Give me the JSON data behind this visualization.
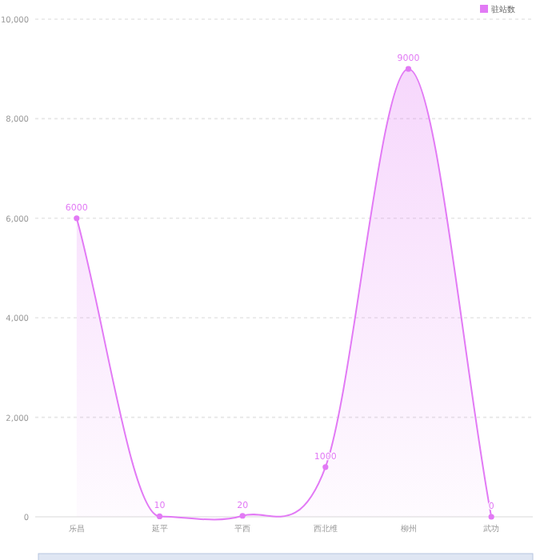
{
  "chart_data": {
    "type": "area",
    "categories": [
      "乐昌",
      "延平",
      "平西",
      "西北维",
      "柳州",
      "武功"
    ],
    "series": [
      {
        "name": "驻站数",
        "color": "#e27af5",
        "values": [
          6000,
          10,
          20,
          1000,
          9000,
          0
        ]
      }
    ],
    "ylim": [
      0,
      10000
    ],
    "yticks": [
      {
        "value": 0,
        "label": "0"
      },
      {
        "value": 2000,
        "label": "2,000"
      },
      {
        "value": 4000,
        "label": "4,000"
      },
      {
        "value": 6000,
        "label": "6,000"
      },
      {
        "value": 8000,
        "label": "8,000"
      },
      {
        "value": 10000,
        "label": "10,000"
      }
    ],
    "grid": "y",
    "legend": "top right",
    "marker": "circle",
    "data_labels": true
  }
}
